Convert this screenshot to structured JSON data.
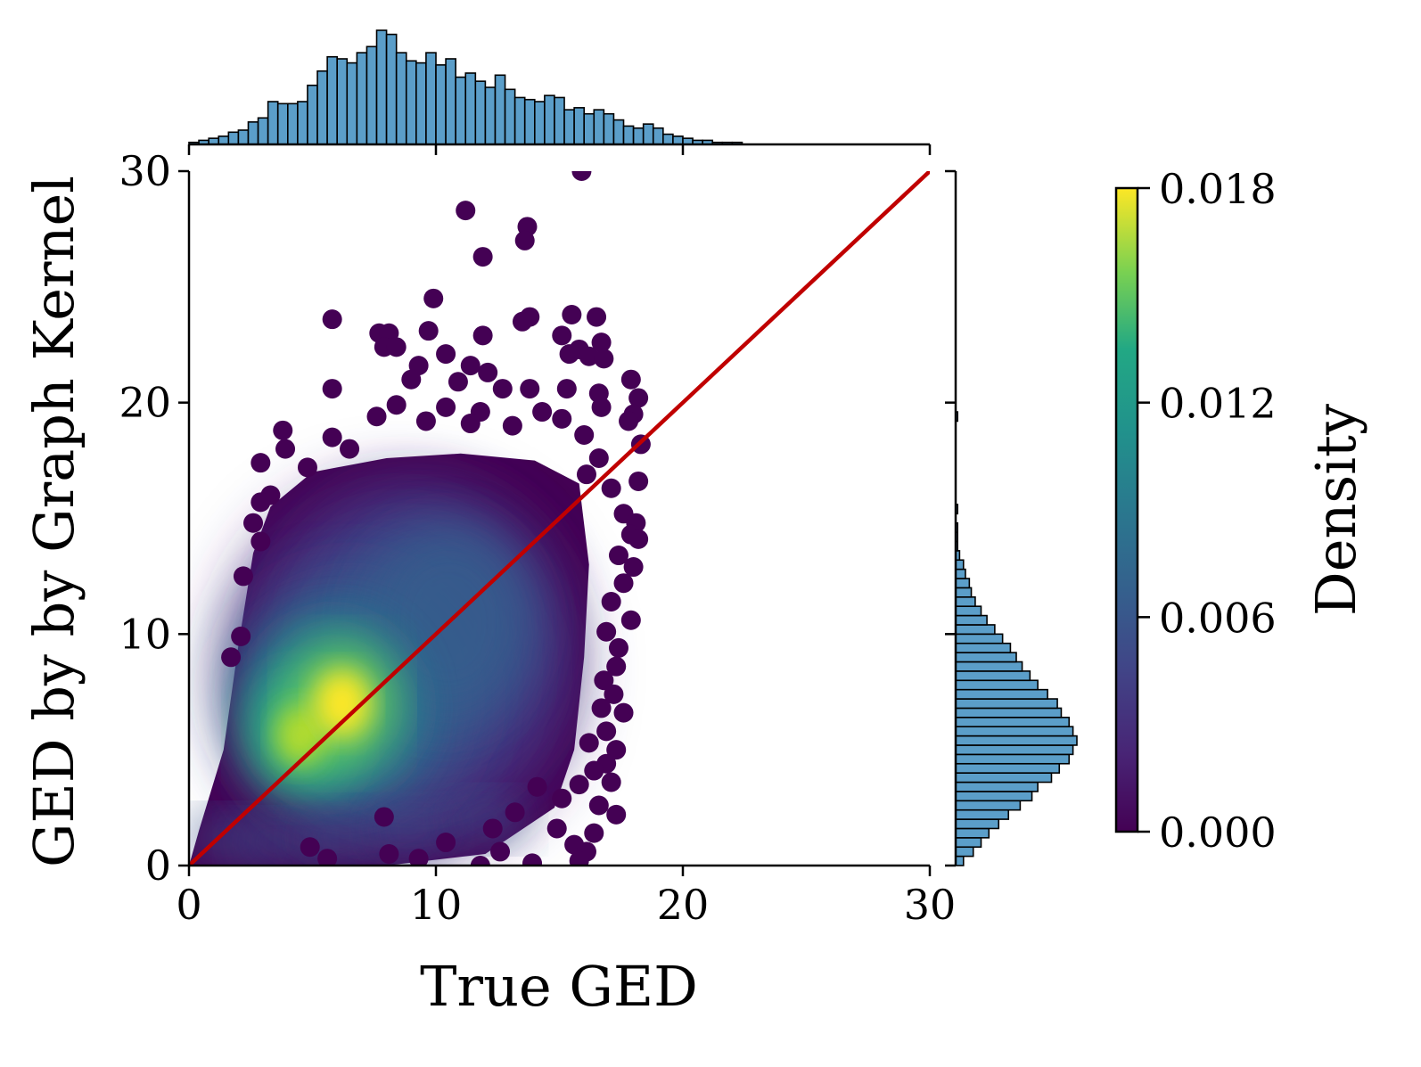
{
  "chart_data": {
    "type": "scatter",
    "xlabel": "True GED",
    "ylabel": "GED by by Graph Kernel",
    "xlim": [
      0,
      30
    ],
    "ylim": [
      0,
      30
    ],
    "xticks": [
      "0",
      "10",
      "20",
      "30"
    ],
    "yticks": [
      "0",
      "10",
      "20",
      "30"
    ],
    "reference_line": {
      "x": [
        0,
        30
      ],
      "y": [
        0,
        30
      ],
      "color": "#c00000"
    },
    "colorbar": {
      "label": "Density",
      "range": [
        0,
        0.018
      ],
      "ticks": [
        "0.000",
        "0.006",
        "0.012",
        "0.018"
      ],
      "colormap": "viridis"
    },
    "density_peak": {
      "x": 6.2,
      "y": 7.0
    },
    "density_secondary": {
      "x": 4.5,
      "y": 5.6
    },
    "outliers": [
      [
        15.9,
        30.0
      ],
      [
        11.2,
        28.3
      ],
      [
        13.7,
        27.6
      ],
      [
        13.6,
        27.0
      ],
      [
        11.9,
        26.3
      ],
      [
        9.9,
        24.5
      ],
      [
        5.8,
        23.6
      ],
      [
        13.8,
        23.7
      ],
      [
        15.5,
        23.8
      ],
      [
        16.5,
        23.7
      ],
      [
        13.5,
        23.5
      ],
      [
        7.7,
        23.0
      ],
      [
        8.1,
        23.0
      ],
      [
        9.7,
        23.1
      ],
      [
        11.9,
        22.9
      ],
      [
        15.1,
        22.9
      ],
      [
        16.7,
        22.6
      ],
      [
        15.4,
        22.1
      ],
      [
        15.8,
        22.3
      ],
      [
        16.2,
        22.0
      ],
      [
        7.9,
        22.4
      ],
      [
        8.4,
        22.4
      ],
      [
        10.4,
        22.1
      ],
      [
        16.8,
        21.9
      ],
      [
        9.3,
        21.6
      ],
      [
        11.4,
        21.6
      ],
      [
        12.1,
        21.3
      ],
      [
        10.9,
        20.9
      ],
      [
        12.7,
        20.6
      ],
      [
        13.8,
        20.6
      ],
      [
        9.0,
        21.0
      ],
      [
        5.8,
        20.6
      ],
      [
        17.9,
        21.0
      ],
      [
        15.3,
        20.6
      ],
      [
        16.6,
        20.4
      ],
      [
        18.2,
        20.2
      ],
      [
        8.4,
        19.9
      ],
      [
        10.4,
        19.8
      ],
      [
        11.8,
        19.6
      ],
      [
        14.3,
        19.6
      ],
      [
        16.7,
        19.8
      ],
      [
        18.0,
        19.5
      ],
      [
        7.6,
        19.4
      ],
      [
        9.6,
        19.2
      ],
      [
        11.4,
        19.1
      ],
      [
        13.1,
        19.0
      ],
      [
        15.1,
        19.3
      ],
      [
        17.8,
        19.2
      ],
      [
        3.8,
        18.8
      ],
      [
        5.8,
        18.5
      ],
      [
        16.0,
        18.6
      ],
      [
        18.3,
        18.2
      ],
      [
        3.9,
        18.0
      ],
      [
        6.5,
        18.0
      ],
      [
        16.6,
        17.6
      ],
      [
        2.9,
        17.4
      ],
      [
        4.8,
        17.2
      ],
      [
        16.1,
        16.9
      ],
      [
        18.2,
        16.6
      ],
      [
        17.1,
        16.3
      ],
      [
        3.3,
        16.0
      ],
      [
        2.9,
        15.7
      ],
      [
        17.6,
        15.2
      ],
      [
        2.6,
        14.8
      ],
      [
        18.1,
        14.8
      ],
      [
        2.9,
        14.0
      ],
      [
        17.9,
        14.3
      ],
      [
        18.2,
        14.1
      ],
      [
        17.4,
        13.4
      ],
      [
        18.0,
        12.9
      ],
      [
        2.2,
        12.5
      ],
      [
        17.6,
        12.2
      ],
      [
        17.1,
        11.4
      ],
      [
        17.9,
        10.6
      ],
      [
        16.9,
        10.1
      ],
      [
        2.1,
        9.9
      ],
      [
        17.4,
        9.4
      ],
      [
        1.7,
        9.0
      ],
      [
        17.3,
        8.6
      ],
      [
        16.8,
        8.0
      ],
      [
        17.2,
        7.4
      ],
      [
        16.7,
        6.8
      ],
      [
        17.6,
        6.6
      ],
      [
        16.9,
        5.8
      ],
      [
        16.2,
        5.3
      ],
      [
        17.3,
        5.0
      ],
      [
        16.9,
        4.4
      ],
      [
        16.4,
        4.1
      ],
      [
        17.1,
        3.6
      ],
      [
        15.8,
        3.5
      ],
      [
        14.1,
        3.4
      ],
      [
        15.1,
        2.9
      ],
      [
        16.6,
        2.6
      ],
      [
        17.3,
        2.2
      ],
      [
        14.9,
        1.6
      ],
      [
        16.4,
        1.4
      ],
      [
        15.6,
        0.9
      ],
      [
        16.1,
        0.6
      ],
      [
        15.8,
        0.2
      ],
      [
        13.9,
        0.1
      ],
      [
        11.8,
        0.0
      ],
      [
        9.3,
        0.3
      ],
      [
        8.1,
        0.5
      ],
      [
        12.3,
        1.6
      ],
      [
        13.2,
        2.3
      ],
      [
        7.9,
        2.1
      ],
      [
        12.6,
        0.6
      ],
      [
        10.4,
        1.0
      ],
      [
        5.6,
        0.3
      ],
      [
        4.9,
        0.8
      ]
    ],
    "top_histogram": {
      "bin_start": 0,
      "bin_width": 0.4,
      "counts": [
        1,
        2,
        3,
        4,
        6,
        7,
        11,
        13,
        21,
        20,
        20,
        21,
        29,
        36,
        43,
        42,
        40,
        45,
        48,
        56,
        54,
        45,
        41,
        40,
        45,
        39,
        42,
        33,
        35,
        31,
        28,
        34,
        27,
        23,
        22,
        21,
        24,
        23,
        17,
        18,
        15,
        17,
        15,
        12,
        9,
        8,
        10,
        8,
        5,
        4,
        3,
        2,
        2,
        1,
        1,
        1
      ]
    },
    "right_histogram": {
      "bin_start": 0,
      "bin_width": 0.4,
      "counts": [
        4,
        9,
        13,
        17,
        22,
        27,
        33,
        39,
        42,
        49,
        53,
        58,
        60,
        62,
        60,
        58,
        54,
        52,
        47,
        42,
        38,
        34,
        31,
        28,
        24,
        20,
        16,
        13,
        10,
        8,
        7,
        5,
        4,
        2,
        1,
        1,
        1,
        0,
        1,
        0,
        0,
        0,
        0,
        0,
        0,
        0,
        0,
        0,
        1,
        0,
        0,
        0,
        0,
        0,
        0,
        0,
        0,
        0,
        0,
        0,
        0,
        0,
        0,
        0,
        0,
        0,
        0,
        0,
        0,
        0,
        0,
        0,
        0,
        0,
        0
      ]
    },
    "hist_color": "#5b9ec9",
    "legend": "none",
    "grid": false
  }
}
